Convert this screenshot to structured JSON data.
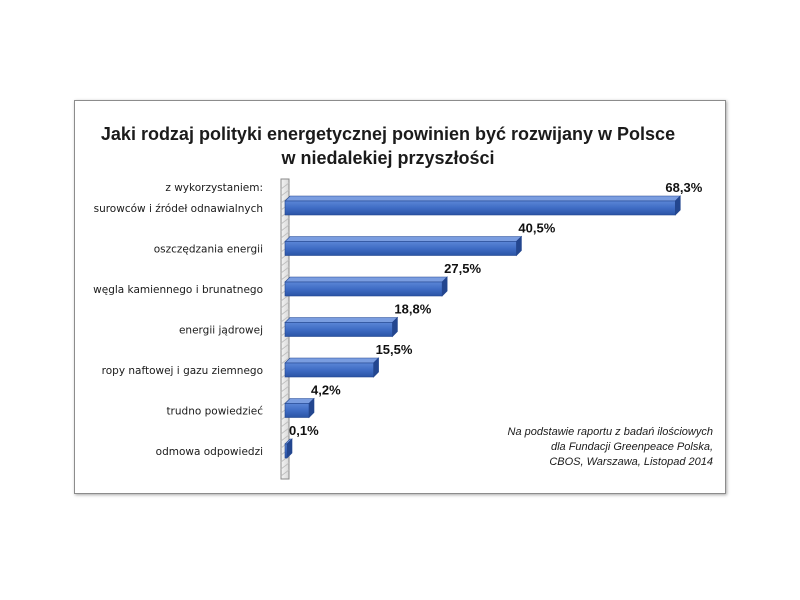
{
  "chart_data": {
    "type": "bar",
    "orientation": "horizontal",
    "title_lines": [
      "Jaki rodzaj polityki energetycznej powinien być rozwijany w Polsce",
      "w niedalekiej przyszłości"
    ],
    "category_prefix": "z wykorzystaniem:",
    "categories": [
      "surowców  i źródeł  odnawialnych",
      "oszczędzania energii",
      "węgla kamiennego  i brunatnego",
      "energii jądrowej",
      "ropy naftowej i gazu ziemnego",
      "trudno powiedzieć",
      "odmowa odpowiedzi"
    ],
    "values": [
      68.3,
      40.5,
      27.5,
      18.8,
      15.5,
      4.2,
      0.1
    ],
    "value_labels": [
      "68,3%",
      "40,5%",
      "27,5%",
      "18,8%",
      "15,5%",
      "4,2%",
      "0,1%"
    ],
    "xlim": [
      0,
      70
    ],
    "grid": false,
    "legend": "none",
    "bar_color": "#3f6cc4",
    "bar_edge_color": "#23468f",
    "source_note": [
      "Na podstawie raportu  z badań ilościowych",
      "dla Fundacji Greenpeace  Polska,",
      "CBOS, Warszawa,  Listopad 2014"
    ]
  }
}
